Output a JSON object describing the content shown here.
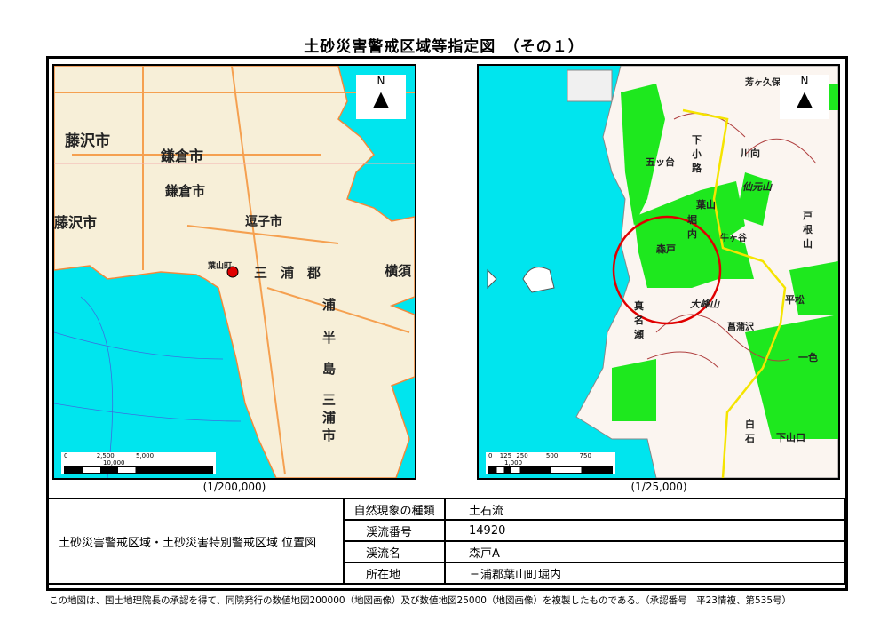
{
  "title": "土砂災害警戒区域等指定図　（その１）",
  "left_map": {
    "north_label": "N",
    "scale_caption": "(1/200,000)",
    "scale_ticks": [
      "0",
      "2,500",
      "5,000",
      "10,000"
    ],
    "scale_unit": "m",
    "labels": [
      "藤沢市",
      "鎌倉市",
      "鎌倉市",
      "藤沢市",
      "逗子市",
      "葉山町",
      "三　浦　郡",
      "横須",
      "浦",
      "半",
      "島",
      "三",
      "浦",
      "市"
    ],
    "marker_color": "#e00000"
  },
  "right_map": {
    "north_label": "N",
    "scale_caption": "(1/25,000)",
    "scale_ticks": [
      "0",
      "125",
      "250",
      "500",
      "750",
      "1,000"
    ],
    "scale_unit": "m",
    "labels": [
      "五ッ台",
      "下小路",
      "川向",
      "仙元山",
      "葉山",
      "堀内",
      "森戸",
      "牛ヶ谷",
      "戸根山",
      "大峰山",
      "平松",
      "真名瀬",
      "菖蒲沢",
      "芳ヶ久保",
      "一色",
      "白石",
      "下山口"
    ],
    "circle_color": "#e00000"
  },
  "info": {
    "left_label": "土砂災害警戒区域・土砂災害特別警戒区域 位置図",
    "rows": [
      {
        "label": "自然現象の種類",
        "value": "土石流"
      },
      {
        "label": "渓流番号",
        "value": "14920"
      },
      {
        "label": "渓流名",
        "value": "森戸A"
      },
      {
        "label": "所在地",
        "value": "三浦郡葉山町堀内"
      }
    ]
  },
  "footer": "この地図は、国土地理院長の承認を得て、同院発行の数値地図200000（地図画像）及び数値地図25000（地図画像）を複製したものである。（承認番号　平23情複、第535号）"
}
